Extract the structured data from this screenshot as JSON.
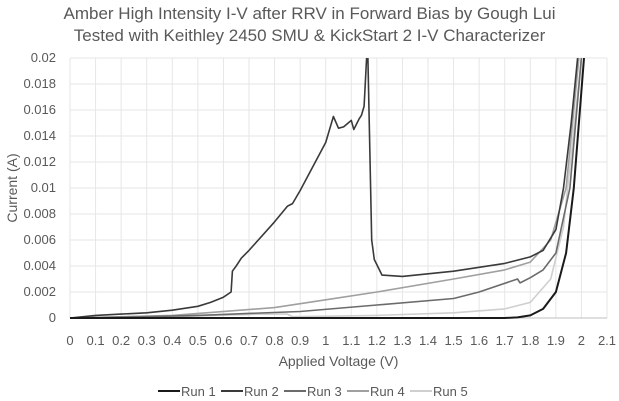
{
  "chart_data": {
    "type": "line",
    "title": "Amber High Intensity I-V after RRV in Forward Bias by Gough Lui",
    "subtitle": "Tested with Keithley 2450 SMU & KickStart 2 I-V Characterizer",
    "xlabel": "Applied Voltage (V)",
    "ylabel": "Current (A)",
    "xlim": [
      0,
      2.1
    ],
    "ylim": [
      0,
      0.02
    ],
    "xticks": [
      "0",
      "0.1",
      "0.2",
      "0.3",
      "0.4",
      "0.5",
      "0.6",
      "0.7",
      "0.8",
      "0.9",
      "1",
      "1.1",
      "1.2",
      "1.3",
      "1.4",
      "1.5",
      "1.6",
      "1.7",
      "1.8",
      "1.9",
      "2",
      "2.1"
    ],
    "yticks": [
      "0",
      "0.002",
      "0.004",
      "0.006",
      "0.008",
      "0.01",
      "0.012",
      "0.014",
      "0.016",
      "0.018",
      "0.02"
    ],
    "grid": true,
    "legend_position": "bottom",
    "series": [
      {
        "name": "Run 1",
        "color": "#1a1a1a",
        "x": [
          0,
          1.7,
          1.75,
          1.8,
          1.85,
          1.9,
          1.94,
          1.97,
          2.01
        ],
        "y": [
          0,
          0,
          5e-05,
          0.0002,
          0.0007,
          0.002,
          0.005,
          0.01,
          0.02
        ]
      },
      {
        "name": "Run 2",
        "color": "#3a3a3a",
        "x": [
          0,
          0.1,
          0.2,
          0.3,
          0.4,
          0.5,
          0.55,
          0.6,
          0.63,
          0.635,
          0.65,
          0.67,
          0.7,
          0.8,
          0.85,
          0.87,
          0.9,
          1.0,
          1.03,
          1.05,
          1.07,
          1.1,
          1.11,
          1.13,
          1.14,
          1.15,
          1.16,
          1.165,
          1.18,
          1.19,
          1.22,
          1.3,
          1.4,
          1.5,
          1.6,
          1.7,
          1.8,
          1.85,
          1.9,
          1.93,
          1.96,
          1.985
        ],
        "y": [
          0,
          0.0002,
          0.0003,
          0.0004,
          0.0006,
          0.0009,
          0.0012,
          0.0016,
          0.002,
          0.0036,
          0.004,
          0.0046,
          0.0052,
          0.0074,
          0.0086,
          0.0088,
          0.0098,
          0.0135,
          0.0155,
          0.0146,
          0.0147,
          0.0152,
          0.0145,
          0.0153,
          0.0156,
          0.0163,
          0.02,
          0.02,
          0.006,
          0.0045,
          0.0033,
          0.0032,
          0.0034,
          0.0036,
          0.0039,
          0.0042,
          0.0047,
          0.0052,
          0.0068,
          0.01,
          0.015,
          0.02
        ]
      },
      {
        "name": "Run 3",
        "color": "#6b6b6b",
        "x": [
          0,
          0.3,
          0.5,
          0.9,
          1.2,
          1.5,
          1.6,
          1.75,
          1.76,
          1.8,
          1.85,
          1.9,
          1.955,
          2.0
        ],
        "y": [
          0,
          0.0001,
          0.0002,
          0.0005,
          0.001,
          0.0015,
          0.002,
          0.003,
          0.0027,
          0.0031,
          0.0037,
          0.005,
          0.01,
          0.02
        ]
      },
      {
        "name": "Run 4",
        "color": "#a0a0a0",
        "x": [
          0,
          0.4,
          0.8,
          1.0,
          1.2,
          1.5,
          1.7,
          1.8,
          1.88,
          1.94,
          1.99
        ],
        "y": [
          0,
          0.0002,
          0.0008,
          0.0014,
          0.002,
          0.003,
          0.0037,
          0.0043,
          0.006,
          0.01,
          0.02
        ]
      },
      {
        "name": "Run 5",
        "color": "#cfcfcf",
        "x": [
          0,
          0.4,
          0.75,
          0.85,
          0.87,
          1.2,
          1.5,
          1.7,
          1.8,
          1.88,
          1.93,
          2.0
        ],
        "y": [
          0,
          0.0001,
          0.0003,
          0.0003,
          0.0001,
          0.0002,
          0.0004,
          0.0007,
          0.0012,
          0.003,
          0.007,
          0.02
        ]
      }
    ]
  }
}
